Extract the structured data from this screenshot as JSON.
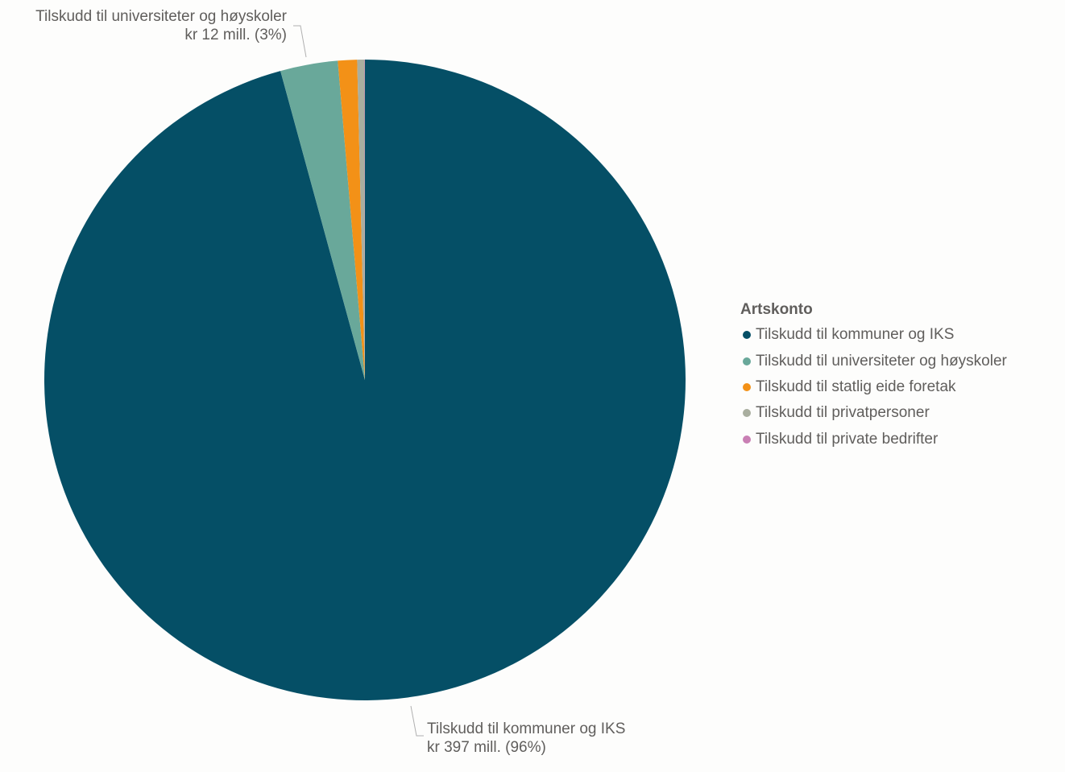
{
  "chart_data": {
    "type": "pie",
    "legend_title": "Artskonto",
    "legend_position": "right",
    "slices": [
      {
        "name": "Tilskudd til kommuner og IKS",
        "value": 397,
        "percent": 96,
        "color": "#054f66",
        "label_line1": "Tilskudd til kommuner og IKS",
        "label_line2": "kr 397 mill. (96%)"
      },
      {
        "name": "Tilskudd til universiteter og høyskoler",
        "value": 12,
        "percent": 3,
        "color": "#69a89a",
        "label_line1": "Tilskudd til universiteter og høyskoler",
        "label_line2": "kr 12 mill. (3%)"
      },
      {
        "name": "Tilskudd til statlig eide foretak",
        "value": 4,
        "percent": 1,
        "color": "#f39117"
      },
      {
        "name": "Tilskudd til privatpersoner",
        "value": 1.5,
        "color": "#a9ae9f"
      },
      {
        "name": "Tilskudd til private bedrifter",
        "value": 0.1,
        "color": "#c97fb4"
      }
    ]
  }
}
